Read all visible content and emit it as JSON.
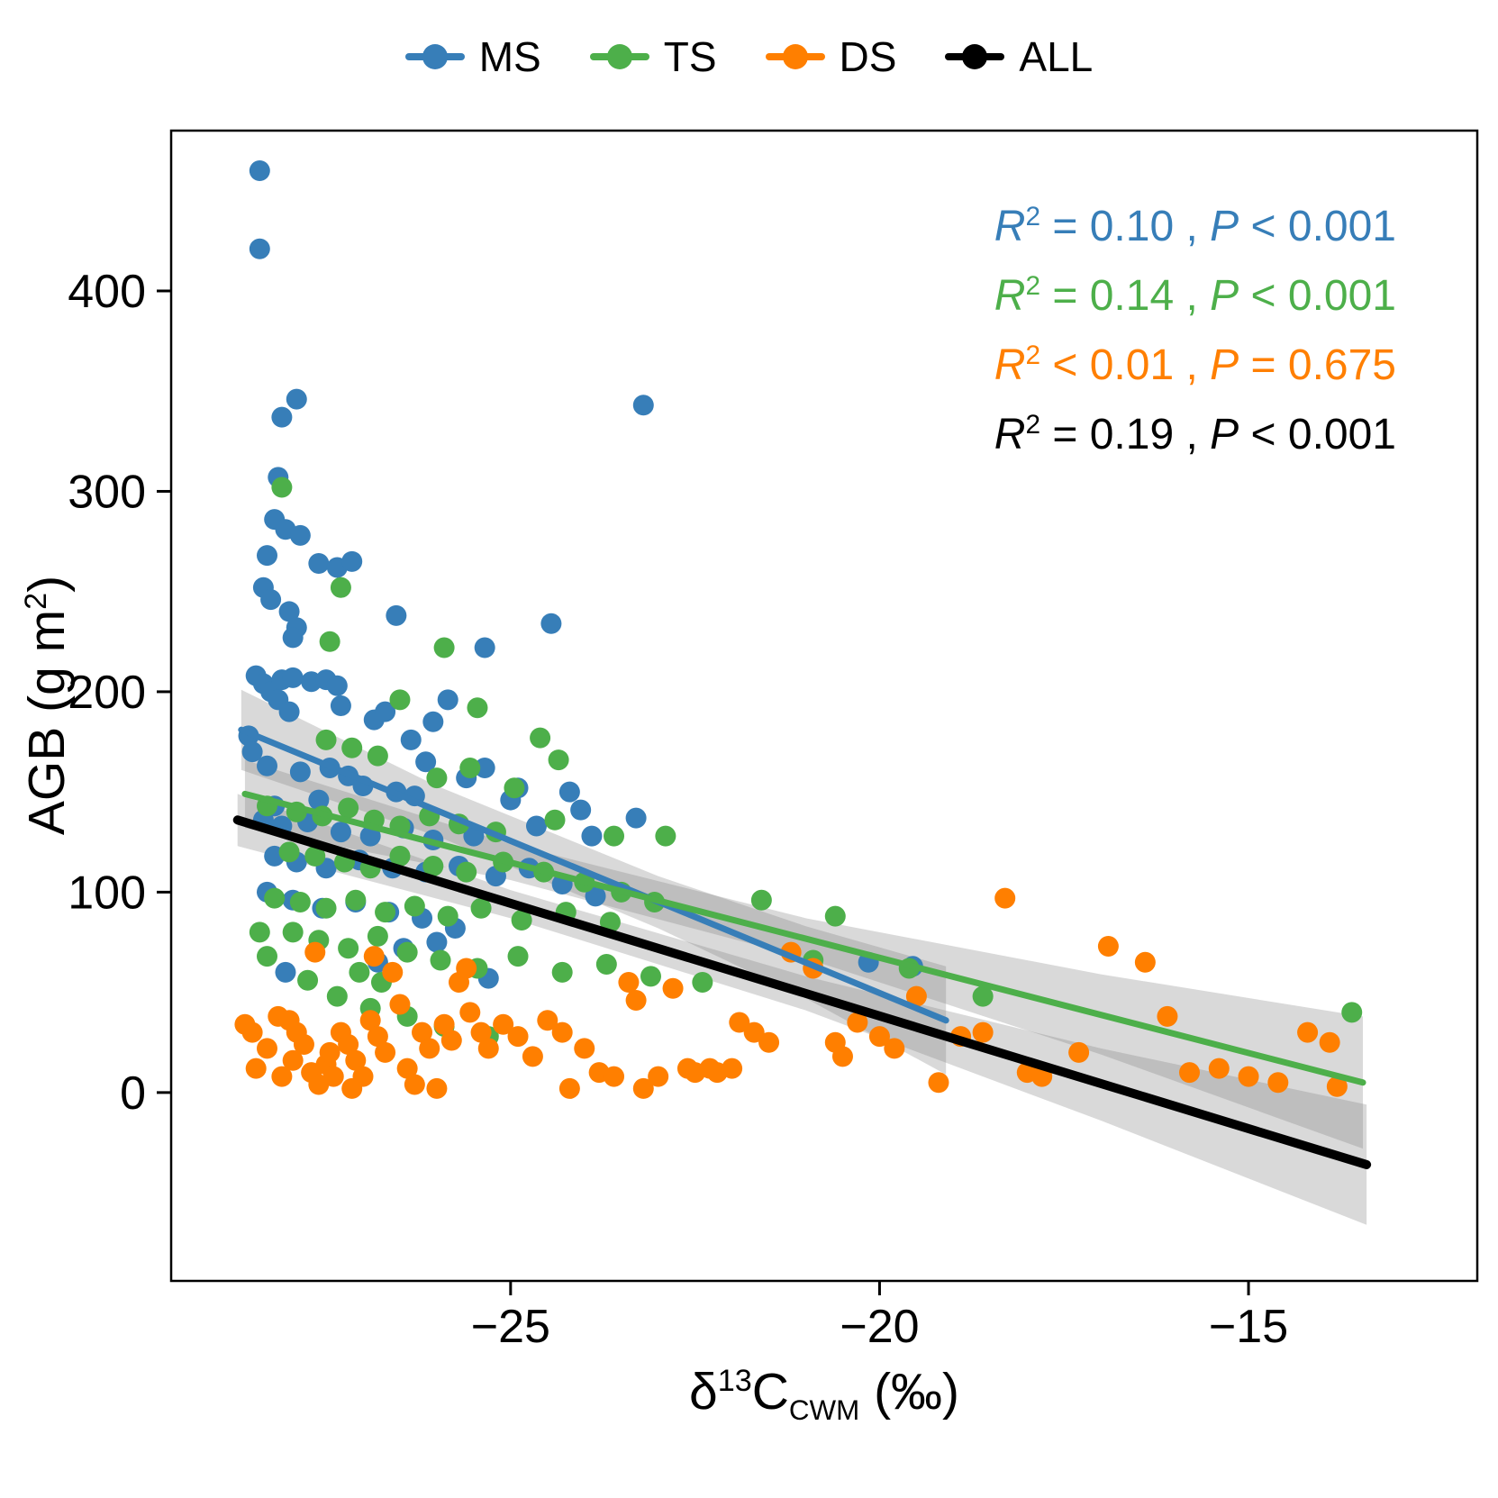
{
  "legend": {
    "items": [
      {
        "label": "MS",
        "color": "#377eb8"
      },
      {
        "label": "TS",
        "color": "#4daf4a"
      },
      {
        "label": "DS",
        "color": "#ff7f00"
      },
      {
        "label": "ALL",
        "color": "#000000"
      }
    ]
  },
  "annotations": [
    {
      "r": "R",
      "exp": "2",
      "mid": " = 0.10 , ",
      "p": "P",
      "end": " < 0.001",
      "color": "#377eb8"
    },
    {
      "r": "R",
      "exp": "2",
      "mid": " = 0.14 , ",
      "p": "P",
      "end": " < 0.001",
      "color": "#4daf4a"
    },
    {
      "r": "R",
      "exp": "2",
      "mid": " < 0.01 , ",
      "p": "P",
      "end": " = 0.675",
      "color": "#ff7f00"
    },
    {
      "r": "R",
      "exp": "2",
      "mid": " = 0.19 , ",
      "p": "P",
      "end": " < 0.001",
      "color": "#000000"
    }
  ],
  "axes": {
    "y_label_parts": {
      "pre": "AGB (g m",
      "sup": "2",
      "post": ")"
    },
    "x_label_parts": {
      "delta": "δ",
      "sup": "13",
      "c": "C",
      "sub": "CWM",
      "unit": " (‰)"
    }
  },
  "chart_data": {
    "type": "scatter",
    "title": "",
    "xlabel": "δ13C_CWM (‰)",
    "ylabel": "AGB (g m2)",
    "xlim": [
      -29.6,
      -11.9
    ],
    "ylim": [
      -94,
      480
    ],
    "x_ticks": [
      -25,
      -20,
      -15
    ],
    "y_ticks": [
      0,
      100,
      200,
      300,
      400
    ],
    "grid": false,
    "legend_position": "top",
    "band_color": "#808080",
    "band_opacity": 0.3,
    "series": [
      {
        "name": "MS",
        "color": "#377eb8",
        "line_width": 7,
        "regression": {
          "x1": -28.65,
          "y1": 181,
          "x2": -19.1,
          "y2": 36
        },
        "ci": [
          [
            -28.65,
            161,
            201
          ],
          [
            -26,
            128,
            153
          ],
          [
            -23,
            82,
            108
          ],
          [
            -21,
            47,
            83
          ],
          [
            -19.1,
            9,
            63
          ]
        ],
        "points": [
          [
            -28.4,
            460
          ],
          [
            -28.4,
            421
          ],
          [
            -27.9,
            346
          ],
          [
            -28.1,
            337
          ],
          [
            -28.15,
            307
          ],
          [
            -23.2,
            343
          ],
          [
            -28.2,
            286
          ],
          [
            -28.05,
            281
          ],
          [
            -27.85,
            278
          ],
          [
            -28.3,
            268
          ],
          [
            -27.6,
            264
          ],
          [
            -27.35,
            262
          ],
          [
            -28.35,
            252
          ],
          [
            -27.15,
            265
          ],
          [
            -28.25,
            246
          ],
          [
            -28.0,
            240
          ],
          [
            -27.9,
            232
          ],
          [
            -27.95,
            227
          ],
          [
            -26.55,
            238
          ],
          [
            -24.45,
            234
          ],
          [
            -25.35,
            222
          ],
          [
            -28.45,
            208
          ],
          [
            -28.35,
            204
          ],
          [
            -28.25,
            200
          ],
          [
            -28.1,
            206
          ],
          [
            -27.95,
            207
          ],
          [
            -27.7,
            205
          ],
          [
            -27.5,
            206
          ],
          [
            -27.35,
            203
          ],
          [
            -28.15,
            196
          ],
          [
            -27.3,
            193
          ],
          [
            -28.0,
            190
          ],
          [
            -26.85,
            186
          ],
          [
            -26.7,
            190
          ],
          [
            -25.85,
            196
          ],
          [
            -26.05,
            185
          ],
          [
            -28.55,
            178
          ],
          [
            -28.5,
            170
          ],
          [
            -28.3,
            163
          ],
          [
            -27.85,
            160
          ],
          [
            -27.45,
            162
          ],
          [
            -27.2,
            158
          ],
          [
            -26.35,
            176
          ],
          [
            -26.15,
            165
          ],
          [
            -25.35,
            162
          ],
          [
            -24.9,
            152
          ],
          [
            -26.55,
            150
          ],
          [
            -27.0,
            153
          ],
          [
            -27.6,
            146
          ],
          [
            -28.2,
            143
          ],
          [
            -26.3,
            148
          ],
          [
            -25.0,
            146
          ],
          [
            -24.2,
            150
          ],
          [
            -24.05,
            141
          ],
          [
            -25.6,
            157
          ],
          [
            -28.35,
            136
          ],
          [
            -28.1,
            133
          ],
          [
            -27.75,
            135
          ],
          [
            -27.3,
            130
          ],
          [
            -26.9,
            128
          ],
          [
            -26.45,
            132
          ],
          [
            -26.05,
            126
          ],
          [
            -25.5,
            128
          ],
          [
            -24.65,
            133
          ],
          [
            -23.9,
            128
          ],
          [
            -23.3,
            137
          ],
          [
            -28.2,
            118
          ],
          [
            -27.9,
            115
          ],
          [
            -27.5,
            112
          ],
          [
            -27.05,
            116
          ],
          [
            -26.6,
            112
          ],
          [
            -26.15,
            110
          ],
          [
            -25.7,
            113
          ],
          [
            -25.2,
            108
          ],
          [
            -24.75,
            112
          ],
          [
            -24.3,
            104
          ],
          [
            -23.85,
            98
          ],
          [
            -28.3,
            100
          ],
          [
            -27.95,
            96
          ],
          [
            -27.55,
            92
          ],
          [
            -27.1,
            95
          ],
          [
            -26.65,
            90
          ],
          [
            -26.2,
            87
          ],
          [
            -25.75,
            82
          ],
          [
            -26.0,
            75
          ],
          [
            -26.45,
            72
          ],
          [
            -28.05,
            60
          ],
          [
            -25.3,
            57
          ],
          [
            -26.8,
            65
          ],
          [
            -20.15,
            65
          ],
          [
            -19.55,
            63
          ]
        ]
      },
      {
        "name": "TS",
        "color": "#4daf4a",
        "line_width": 7,
        "regression": {
          "x1": -28.6,
          "y1": 149,
          "x2": -13.45,
          "y2": 5
        },
        "ci": [
          [
            -28.6,
            132,
            166
          ],
          [
            -25,
            106,
            124
          ],
          [
            -21,
            67,
            87
          ],
          [
            -17,
            19,
            59
          ],
          [
            -13.45,
            -28,
            38
          ]
        ],
        "points": [
          [
            -28.1,
            302
          ],
          [
            -27.3,
            252
          ],
          [
            -27.45,
            225
          ],
          [
            -25.9,
            222
          ],
          [
            -26.5,
            196
          ],
          [
            -25.45,
            192
          ],
          [
            -24.6,
            177
          ],
          [
            -24.35,
            166
          ],
          [
            -25.55,
            162
          ],
          [
            -26.0,
            157
          ],
          [
            -24.95,
            152
          ],
          [
            -27.5,
            176
          ],
          [
            -27.15,
            172
          ],
          [
            -26.8,
            168
          ],
          [
            -28.3,
            143
          ],
          [
            -27.9,
            140
          ],
          [
            -27.55,
            138
          ],
          [
            -27.2,
            142
          ],
          [
            -26.85,
            136
          ],
          [
            -26.5,
            133
          ],
          [
            -26.1,
            138
          ],
          [
            -25.7,
            134
          ],
          [
            -25.2,
            130
          ],
          [
            -24.4,
            136
          ],
          [
            -23.6,
            128
          ],
          [
            -22.9,
            128
          ],
          [
            -28.0,
            120
          ],
          [
            -27.65,
            118
          ],
          [
            -27.25,
            115
          ],
          [
            -26.9,
            112
          ],
          [
            -26.5,
            118
          ],
          [
            -26.05,
            113
          ],
          [
            -25.6,
            110
          ],
          [
            -25.1,
            115
          ],
          [
            -24.55,
            110
          ],
          [
            -24.0,
            105
          ],
          [
            -23.5,
            100
          ],
          [
            -28.2,
            97
          ],
          [
            -27.85,
            95
          ],
          [
            -27.5,
            92
          ],
          [
            -27.1,
            96
          ],
          [
            -26.7,
            90
          ],
          [
            -26.3,
            93
          ],
          [
            -25.85,
            88
          ],
          [
            -25.4,
            92
          ],
          [
            -24.85,
            86
          ],
          [
            -24.25,
            90
          ],
          [
            -23.65,
            85
          ],
          [
            -23.05,
            95
          ],
          [
            -21.6,
            96
          ],
          [
            -20.6,
            88
          ],
          [
            -27.95,
            80
          ],
          [
            -27.6,
            76
          ],
          [
            -27.2,
            72
          ],
          [
            -26.8,
            78
          ],
          [
            -26.4,
            70
          ],
          [
            -25.95,
            66
          ],
          [
            -25.45,
            62
          ],
          [
            -24.9,
            68
          ],
          [
            -24.3,
            60
          ],
          [
            -23.7,
            64
          ],
          [
            -23.1,
            58
          ],
          [
            -22.4,
            55
          ],
          [
            -28.4,
            80
          ],
          [
            -28.3,
            68
          ],
          [
            -27.75,
            56
          ],
          [
            -27.35,
            48
          ],
          [
            -26.9,
            42
          ],
          [
            -26.4,
            38
          ],
          [
            -25.9,
            33
          ],
          [
            -25.3,
            28
          ],
          [
            -26.75,
            55
          ],
          [
            -27.05,
            60
          ],
          [
            -20.9,
            66
          ],
          [
            -19.6,
            62
          ],
          [
            -18.6,
            48
          ],
          [
            -13.6,
            40
          ]
        ]
      },
      {
        "name": "DS",
        "color": "#ff7f00",
        "line_width": 0,
        "regression": null,
        "ci": null,
        "points": [
          [
            -28.6,
            34
          ],
          [
            -28.5,
            30
          ],
          [
            -28.3,
            22
          ],
          [
            -28.45,
            12
          ],
          [
            -28.15,
            38
          ],
          [
            -28.0,
            36
          ],
          [
            -27.9,
            30
          ],
          [
            -27.8,
            24
          ],
          [
            -27.95,
            16
          ],
          [
            -28.1,
            8
          ],
          [
            -27.7,
            10
          ],
          [
            -27.6,
            4
          ],
          [
            -27.5,
            14
          ],
          [
            -27.4,
            8
          ],
          [
            -27.45,
            20
          ],
          [
            -27.3,
            30
          ],
          [
            -27.2,
            24
          ],
          [
            -27.1,
            16
          ],
          [
            -27.0,
            8
          ],
          [
            -27.15,
            2
          ],
          [
            -26.9,
            36
          ],
          [
            -26.8,
            28
          ],
          [
            -26.7,
            20
          ],
          [
            -26.6,
            60
          ],
          [
            -26.5,
            44
          ],
          [
            -26.4,
            12
          ],
          [
            -26.3,
            4
          ],
          [
            -26.2,
            30
          ],
          [
            -26.1,
            22
          ],
          [
            -26.0,
            2
          ],
          [
            -25.9,
            34
          ],
          [
            -25.8,
            26
          ],
          [
            -25.7,
            55
          ],
          [
            -25.55,
            40
          ],
          [
            -25.4,
            30
          ],
          [
            -25.3,
            22
          ],
          [
            -25.1,
            34
          ],
          [
            -24.9,
            28
          ],
          [
            -24.7,
            18
          ],
          [
            -24.5,
            36
          ],
          [
            -24.3,
            30
          ],
          [
            -24.2,
            2
          ],
          [
            -24.0,
            22
          ],
          [
            -23.8,
            10
          ],
          [
            -23.6,
            8
          ],
          [
            -23.4,
            55
          ],
          [
            -23.3,
            46
          ],
          [
            -23.2,
            2
          ],
          [
            -23.0,
            8
          ],
          [
            -22.8,
            52
          ],
          [
            -22.6,
            12
          ],
          [
            -22.5,
            10
          ],
          [
            -22.3,
            12
          ],
          [
            -22.2,
            10
          ],
          [
            -22.0,
            12
          ],
          [
            -21.9,
            35
          ],
          [
            -21.7,
            30
          ],
          [
            -21.5,
            25
          ],
          [
            -27.65,
            70
          ],
          [
            -26.85,
            68
          ],
          [
            -25.6,
            62
          ],
          [
            -21.2,
            70
          ],
          [
            -20.9,
            62
          ],
          [
            -20.6,
            25
          ],
          [
            -20.5,
            18
          ],
          [
            -20.3,
            35
          ],
          [
            -20.0,
            28
          ],
          [
            -19.8,
            22
          ],
          [
            -19.5,
            48
          ],
          [
            -19.2,
            5
          ],
          [
            -18.9,
            28
          ],
          [
            -18.6,
            30
          ],
          [
            -18.3,
            97
          ],
          [
            -18.0,
            10
          ],
          [
            -17.8,
            8
          ],
          [
            -17.3,
            20
          ],
          [
            -16.9,
            73
          ],
          [
            -16.4,
            65
          ],
          [
            -16.1,
            38
          ],
          [
            -15.8,
            10
          ],
          [
            -15.4,
            12
          ],
          [
            -15.0,
            8
          ],
          [
            -14.6,
            5
          ],
          [
            -14.2,
            30
          ],
          [
            -13.9,
            25
          ],
          [
            -13.8,
            3
          ]
        ]
      },
      {
        "name": "ALL",
        "color": "#000000",
        "line_width": 10,
        "regression": {
          "x1": -28.7,
          "y1": 136,
          "x2": -13.4,
          "y2": -36
        },
        "ci": [
          [
            -28.7,
            123,
            149
          ],
          [
            -25,
            87,
            101
          ],
          [
            -21,
            41,
            58
          ],
          [
            -17,
            -14,
            22
          ],
          [
            -13.4,
            -66,
            -6
          ]
        ],
        "points": []
      }
    ]
  }
}
